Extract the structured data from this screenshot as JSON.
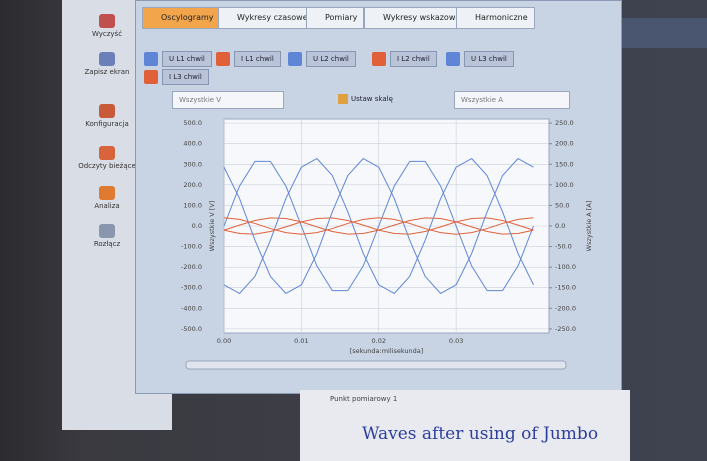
{
  "sidebar": [
    "Wyczyść",
    "Zapisz ekran",
    "Konfiguracja",
    "Odczyty bieżące",
    "Analiza",
    "Rozłącz"
  ],
  "tabs": [
    "Oscylogramy",
    "Wykresy czasowe",
    "Pomiary",
    "Wykresy wskazowe",
    "Harmoniczne"
  ],
  "toolbar": {
    "left_select": "Wszystkie V",
    "button": "Ustaw skalę",
    "right_select": "Wszystkie A"
  },
  "tree_item": "Punkt pomiarowy 1",
  "caption": "Waves after using of Jumbo",
  "chart_data": {
    "type": "line",
    "xlabel": "[sekunda:milisekunda]",
    "ylabel": "Wszystkie V [V]",
    "y2label": "Wszystkie A [A]",
    "x": [
      0,
      0.002,
      0.004,
      0.006,
      0.008,
      0.01,
      0.012,
      0.014,
      0.016,
      0.018,
      0.02,
      0.022,
      0.024,
      0.026,
      0.028,
      0.03,
      0.032,
      0.034,
      0.036,
      0.038,
      0.04
    ],
    "xlim": [
      0,
      0.042
    ],
    "xticks": [
      {
        "value": 0,
        "label": "0.00"
      },
      0.01,
      0.02,
      0.03
    ],
    "ylim": [
      -520,
      520
    ],
    "yticks": [
      {
        "value": 500,
        "label": "500.0"
      },
      {
        "value": 400,
        "label": "400.0"
      },
      {
        "value": 300,
        "label": "300.0"
      },
      {
        "value": 200,
        "label": "200.0"
      },
      {
        "value": 100,
        "label": "100.0"
      },
      {
        "value": 0,
        "label": "0.0"
      },
      {
        "value": -100,
        "label": "-100.0"
      },
      {
        "value": -200,
        "label": "-200.0"
      },
      {
        "value": -300,
        "label": "-300.0"
      },
      {
        "value": -400,
        "label": "-400.0"
      },
      {
        "value": -500,
        "label": "-500.0"
      }
    ],
    "y2lim": [
      -260,
      260
    ],
    "y2ticks": [
      {
        "value": 250,
        "label": "250.0"
      },
      {
        "value": 200,
        "label": "200.0"
      },
      {
        "value": 150,
        "label": "150.0"
      },
      {
        "value": 100,
        "label": "100.0"
      },
      {
        "value": 50,
        "label": "50.0"
      },
      {
        "value": 0,
        "label": "0.0"
      },
      {
        "value": -50,
        "label": "-50.0"
      },
      {
        "value": -100,
        "label": "-100.0"
      },
      {
        "value": -150,
        "label": "-150.0"
      },
      {
        "value": -200,
        "label": "-200.0"
      },
      {
        "value": -250,
        "label": "-250.0"
      }
    ],
    "grid": true,
    "series": [
      {
        "name": "U L1 chwil",
        "color": "#5f86d6",
        "values": [
          0,
          194,
          314,
          314,
          194,
          0,
          -194,
          -314,
          -314,
          -194,
          0,
          194,
          314,
          314,
          194,
          0,
          -194,
          -314,
          -314,
          -194,
          0
        ]
      },
      {
        "name": "I L1 chwil",
        "color": "#e0603a",
        "axis": "y2",
        "values": [
          -10,
          2.1,
          13.4,
          19.6,
          18.3,
          10,
          -2.1,
          -13.4,
          -19.6,
          -18.3,
          -10,
          2.1,
          13.4,
          19.6,
          18.3,
          10,
          -2.1,
          -13.4,
          -19.6,
          -18.3,
          -10
        ]
      },
      {
        "name": "U L2 chwil",
        "color": "#5f86d6",
        "values": [
          -286,
          -328,
          -245,
          -69,
          134,
          286,
          328,
          245,
          69,
          -134,
          -286,
          -328,
          -245,
          -69,
          134,
          286,
          328,
          245,
          69,
          -134,
          -286
        ]
      },
      {
        "name": "I L2 chwil",
        "color": "#e0603a",
        "axis": "y2",
        "values": [
          -10,
          -18.3,
          -19.6,
          -13.4,
          -2.1,
          10,
          18.3,
          19.6,
          13.4,
          2.1,
          -10,
          -18.3,
          -19.6,
          -13.4,
          -2.1,
          10,
          18.3,
          19.6,
          13.4,
          2.1,
          -10
        ]
      },
      {
        "name": "U L3 chwil",
        "color": "#5f86d6",
        "values": [
          286,
          134,
          -69,
          -245,
          -328,
          -286,
          -134,
          69,
          245,
          328,
          286,
          134,
          -69,
          -245,
          -328,
          -286,
          -134,
          69,
          245,
          328,
          286
        ]
      },
      {
        "name": "I L3 chwil",
        "color": "#e0603a",
        "axis": "y2",
        "values": [
          20,
          16.2,
          6.2,
          -6.2,
          -16.2,
          -20,
          -16.2,
          -6.2,
          6.2,
          16.2,
          20,
          16.2,
          6.2,
          -6.2,
          -16.2,
          -20,
          -16.2,
          -6.2,
          6.2,
          16.2,
          20
        ]
      }
    ]
  }
}
